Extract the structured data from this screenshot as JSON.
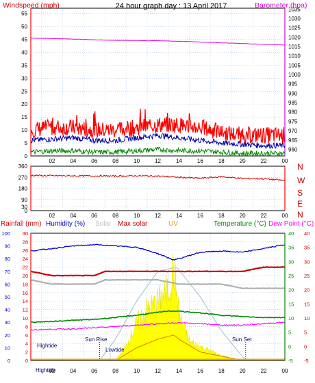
{
  "chart_data": [
    {
      "type": "line",
      "title": "24 hour graph day : 13 April 2017",
      "ylabel": "Windspeed (mph)",
      "y2label": "Barometer (hpa)",
      "x_ticks": [
        "02",
        "04",
        "06",
        "08",
        "10",
        "12",
        "14",
        "16",
        "18",
        "20",
        "22",
        "00"
      ],
      "ylim": [
        0,
        57
      ],
      "y_ticks": [
        0,
        5,
        10,
        15,
        20,
        25,
        30,
        35,
        40,
        45,
        50,
        55
      ],
      "y2lim": [
        956.5,
        1035.5
      ],
      "y2_ticks": [
        960,
        965,
        970,
        975,
        980,
        985,
        990,
        995,
        1000,
        1005,
        1010,
        1015,
        1020,
        1025,
        1030,
        1035
      ],
      "grid": true,
      "series": [
        {
          "name": "Barometer",
          "axis": "y2",
          "color": "#dd00dd",
          "x": [
            0,
            2,
            4,
            6,
            8,
            10,
            12,
            14,
            16,
            18,
            20,
            22,
            24
          ],
          "values": [
            1019.5,
            1019.3,
            1019.0,
            1018.6,
            1018.3,
            1018.2,
            1018.1,
            1017.8,
            1017.4,
            1017.0,
            1016.6,
            1016.2,
            1015.8
          ]
        },
        {
          "axis": "y",
          "color": "#ff0000",
          "x": [
            0,
            2,
            4,
            6,
            8,
            10,
            12,
            14,
            16,
            18,
            20,
            22,
            24
          ],
          "values": [
            10,
            11,
            11,
            10,
            10,
            11,
            12,
            12,
            11,
            9,
            8,
            8,
            8
          ]
        },
        {
          "axis": "y",
          "color": "#0000aa",
          "x": [
            0,
            2,
            4,
            6,
            8,
            10,
            12,
            14,
            16,
            18,
            20,
            22,
            24
          ],
          "values": [
            6,
            6.5,
            7,
            6,
            6,
            7,
            8,
            7,
            6,
            5,
            4.5,
            4,
            4
          ]
        },
        {
          "axis": "y",
          "color": "#008800",
          "x": [
            0,
            2,
            4,
            6,
            8,
            10,
            12,
            14,
            16,
            18,
            20,
            22,
            24
          ],
          "values": [
            1.5,
            2,
            2,
            1.5,
            1.5,
            2,
            2.5,
            2,
            2,
            1.5,
            1,
            1,
            1
          ]
        }
      ]
    },
    {
      "type": "line",
      "ylim": [
        0,
        360
      ],
      "y_ticks": [
        0,
        30,
        90,
        180,
        270,
        360
      ],
      "y2_labels": [
        "N",
        "W",
        "S",
        "E",
        "N"
      ],
      "x_ticks": [
        "02",
        "04",
        "06",
        "08",
        "10",
        "12",
        "14",
        "16",
        "18",
        "20",
        "22",
        "00"
      ],
      "grid": true,
      "series": [
        {
          "color": "#cc0000",
          "x": [
            0,
            2,
            4,
            6,
            8,
            10,
            12,
            14,
            16,
            18,
            20,
            22,
            24
          ],
          "values": [
            285,
            283,
            282,
            281,
            280,
            282,
            280,
            270,
            262,
            275,
            260,
            258,
            245
          ]
        }
      ]
    },
    {
      "type": "area",
      "header_labels": [
        {
          "text": "Rainfall (mm)",
          "color": "#cc0000"
        },
        {
          "text": "Humidity (%)",
          "color": "#0000cc"
        },
        {
          "text": "Solar",
          "color": "#c0c0c0"
        },
        {
          "text": "Max solar",
          "color": "#cc0000"
        },
        {
          "text": "UV",
          "color": "#e8a000"
        },
        {
          "text": "Temperature (°C)",
          "color": "#008800"
        },
        {
          "text": "Dew Point (°C)",
          "color": "#ff00ff"
        }
      ],
      "x_ticks": [
        "02",
        "04",
        "06",
        "08",
        "10",
        "12",
        "14",
        "16",
        "18",
        "20",
        "22",
        "00"
      ],
      "left_axis_1": {
        "ticks": [
          0,
          10,
          20,
          30,
          40,
          50,
          60,
          70,
          80,
          90,
          100
        ],
        "color": "#0000cc"
      },
      "left_axis_2": {
        "ticks": [
          0,
          2,
          4,
          6,
          8,
          10,
          12,
          14,
          16,
          18,
          20,
          22,
          24,
          26,
          28,
          30
        ],
        "color": "#cc0000"
      },
      "right_axis_1": {
        "ticks": [
          -5,
          0,
          5,
          10,
          15,
          20,
          25,
          30,
          35,
          40
        ],
        "color": "#008800"
      },
      "right_axis_2": {
        "ticks": [
          -5,
          0,
          5,
          10,
          15,
          20,
          25,
          30,
          35,
          40
        ],
        "color": "#cc0000"
      },
      "annotations": [
        "Hightide",
        "Sun Rise",
        "Lowtide",
        "Sun Set",
        "Hightide"
      ],
      "series": [
        {
          "name": "Humidity",
          "color": "#0000cc",
          "x": [
            0,
            2,
            4,
            6,
            8,
            10,
            12,
            13.5,
            14,
            16,
            18,
            20,
            22,
            24
          ],
          "values": [
            86,
            88,
            90,
            91,
            90,
            89,
            84,
            79,
            80,
            85,
            86,
            85,
            88,
            91
          ]
        },
        {
          "name": "Max solar",
          "color": "#cc0000",
          "x": [
            0,
            2,
            4,
            6,
            7,
            8,
            10,
            12,
            14,
            16,
            18,
            20,
            22,
            24
          ],
          "values": [
            21,
            20,
            20,
            20,
            21,
            21,
            21,
            21,
            21,
            21,
            21,
            21,
            22,
            22
          ]
        },
        {
          "name": "Solar",
          "color": "#b0b0b0",
          "x": [
            0,
            2,
            4,
            6,
            7,
            8,
            10,
            12,
            14,
            16,
            18,
            20,
            22,
            24
          ],
          "values": [
            19,
            18,
            18,
            18,
            19,
            19,
            19,
            19,
            18,
            18,
            18,
            17,
            17,
            17
          ]
        },
        {
          "name": "Temperature",
          "color": "#008800",
          "x": [
            0,
            2,
            4,
            6,
            8,
            10,
            12,
            13,
            14,
            16,
            18,
            20,
            22,
            24
          ],
          "values": [
            8.5,
            8.8,
            9.2,
            9.5,
            10.2,
            11.0,
            12.0,
            12.5,
            12.4,
            11.8,
            11.0,
            10.5,
            10.2,
            10.2
          ]
        },
        {
          "name": "Dew Point",
          "color": "#ff00ff",
          "x": [
            0,
            2,
            4,
            6,
            8,
            10,
            12,
            14,
            16,
            18,
            20,
            22,
            24
          ],
          "values": [
            5.8,
            6.0,
            6.2,
            6.5,
            7.0,
            7.5,
            8.0,
            8.3,
            8.0,
            7.5,
            7.5,
            8.0,
            8.5
          ]
        },
        {
          "name": "Clear sky",
          "color": "#a8c8e0",
          "x": [
            6.5,
            8,
            10,
            12,
            13.8,
            16,
            18,
            20.3
          ],
          "values": [
            0,
            5,
            14,
            21,
            22,
            15,
            7,
            0
          ]
        },
        {
          "name": "UV",
          "color": "#ffff00",
          "x": [
            8,
            9,
            10,
            11,
            12,
            13,
            13.5,
            14,
            15,
            16,
            17,
            18,
            19,
            20
          ],
          "values": [
            0,
            3,
            8,
            11,
            12.5,
            15,
            20,
            10,
            4,
            3,
            2,
            1,
            0.5,
            0
          ]
        },
        {
          "name": "UV2",
          "color": "#e07000",
          "x": [
            8,
            10,
            12,
            13.5,
            14,
            16,
            18,
            20
          ],
          "values": [
            0,
            3,
            5,
            6,
            5,
            2,
            1,
            0
          ]
        }
      ]
    }
  ]
}
